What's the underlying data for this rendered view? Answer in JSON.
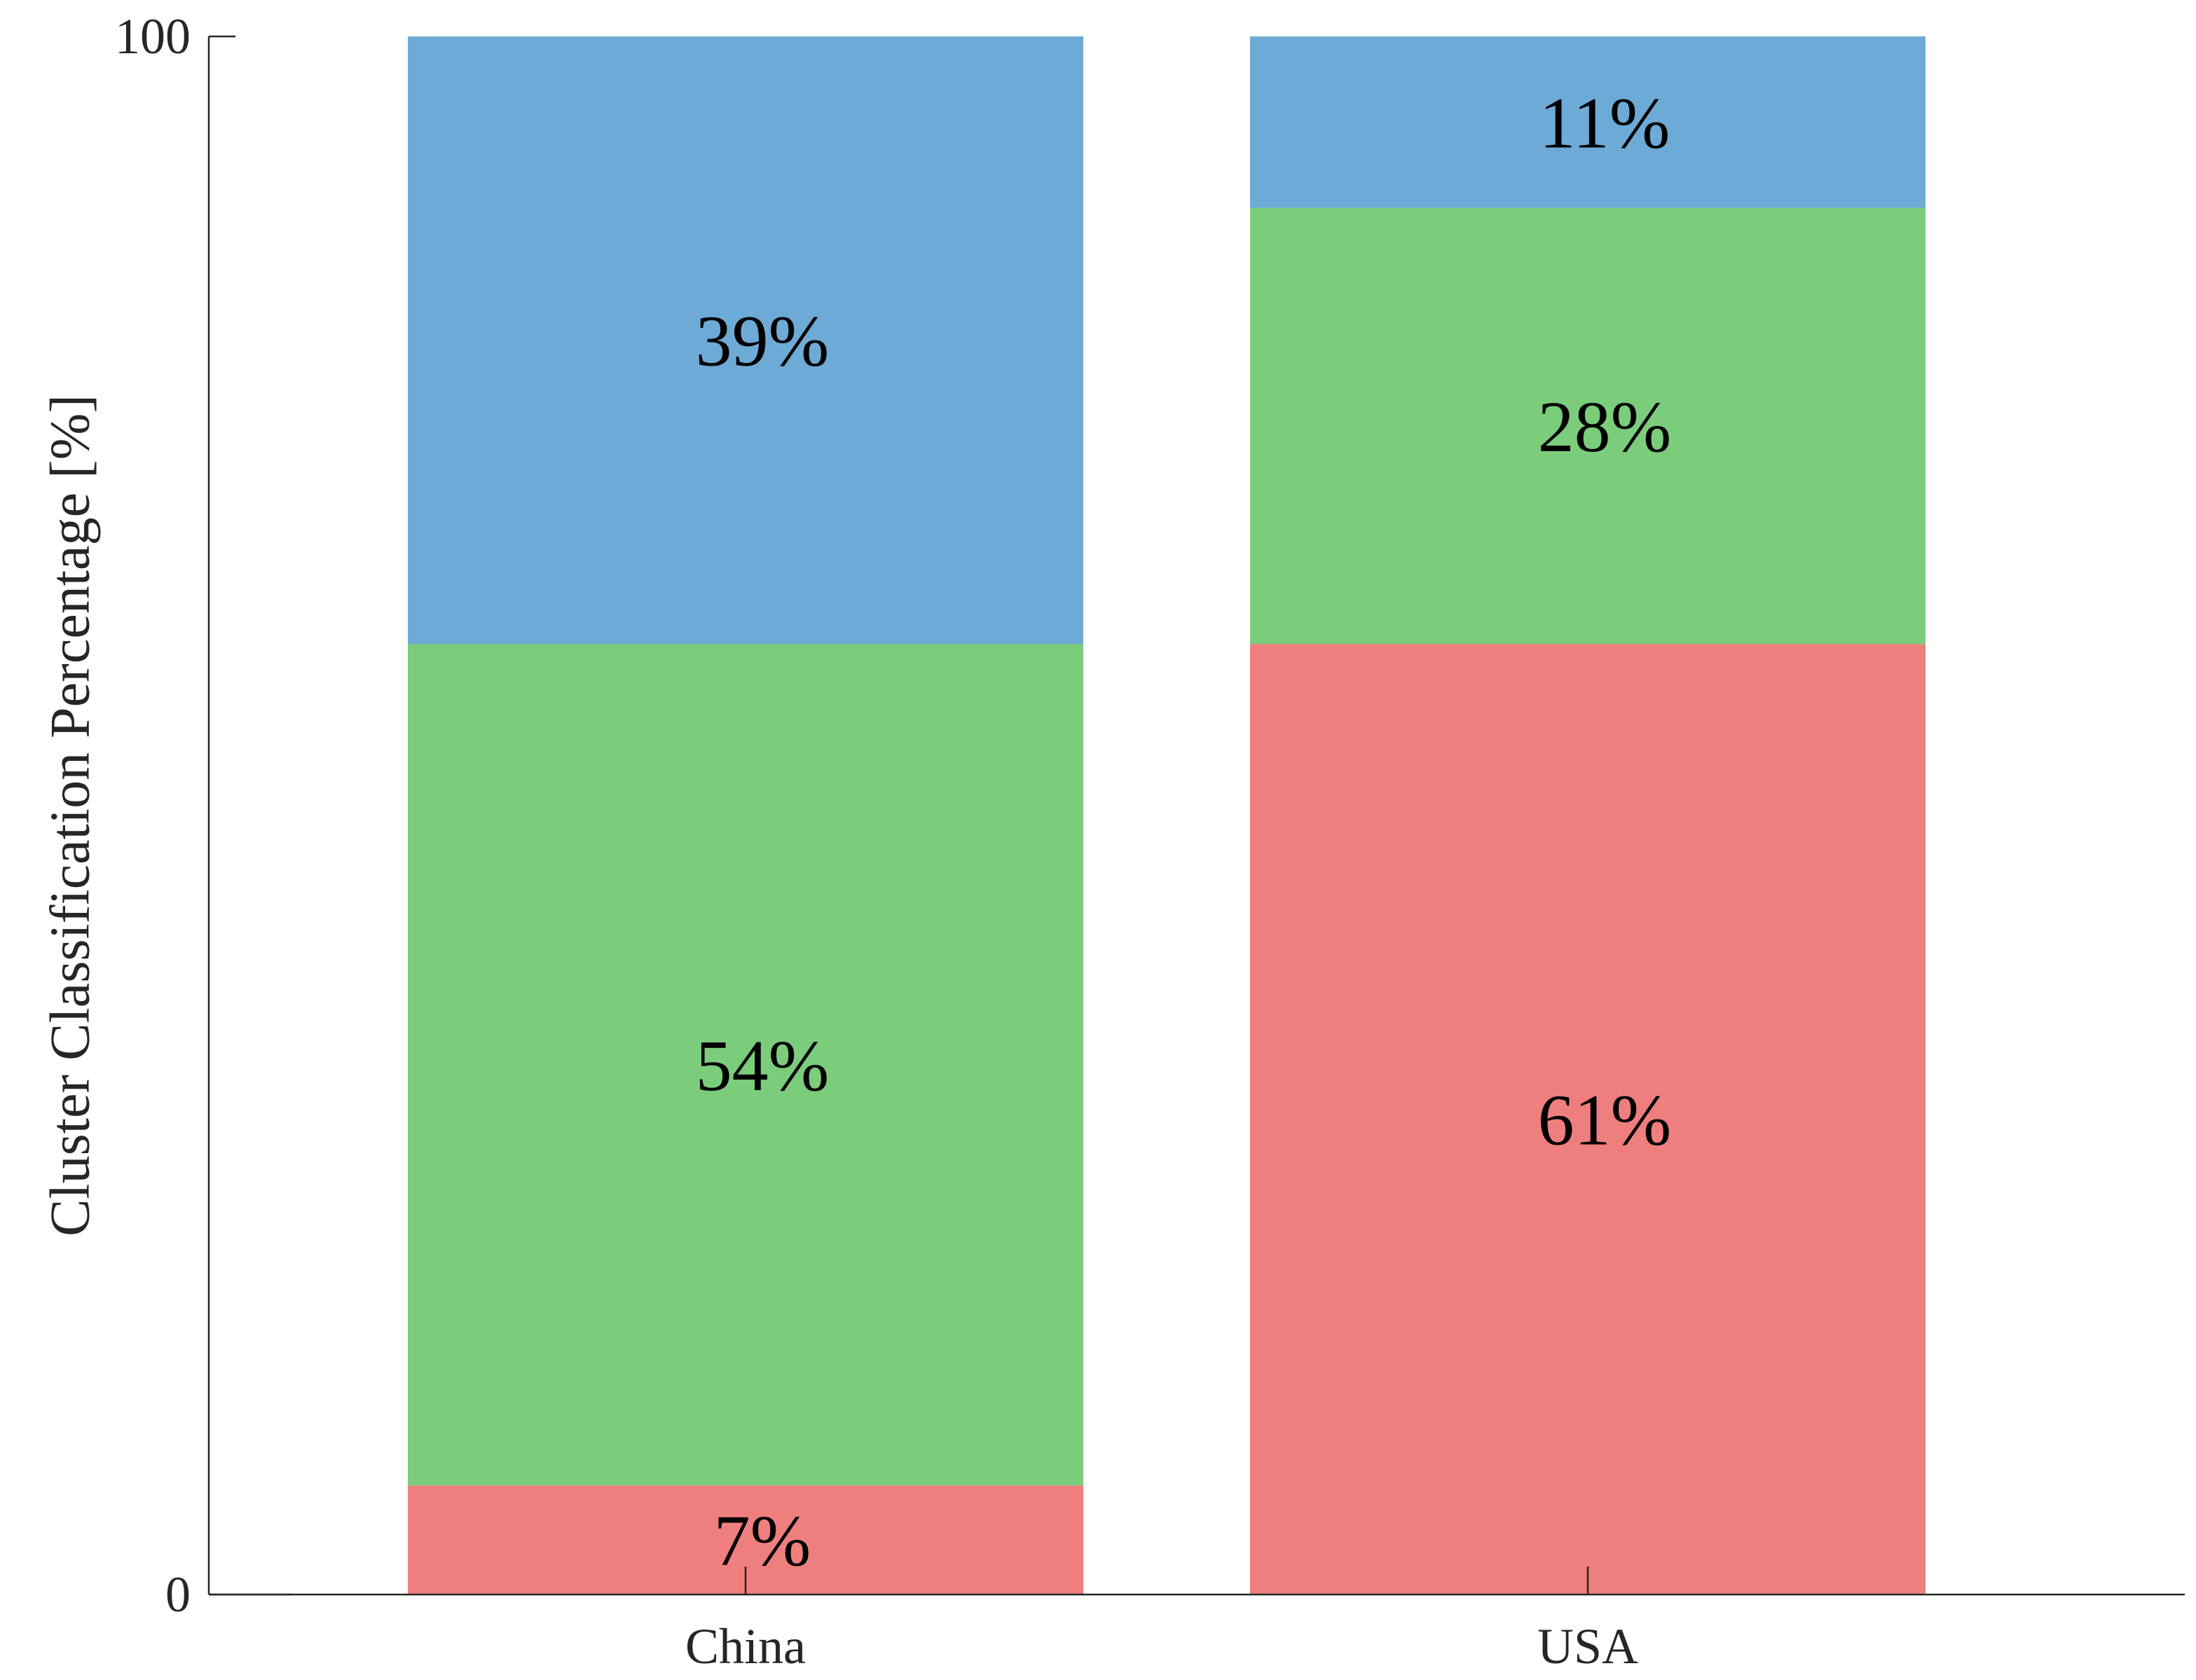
{
  "chart_data": {
    "type": "bar",
    "stacked": true,
    "categories": [
      "China",
      "USA"
    ],
    "series": [
      {
        "values": [
          7,
          61
        ],
        "labels": [
          "7%",
          "61%"
        ],
        "color": "#ef7f7e"
      },
      {
        "values": [
          54,
          28
        ],
        "labels": [
          "54%",
          "28%"
        ],
        "color": "#7bcd7b"
      },
      {
        "values": [
          39,
          11
        ],
        "labels": [
          "39%",
          "11%"
        ],
        "color": "#6eaad6"
      }
    ],
    "ylabel": "Cluster Classification Percentage [%]",
    "ylim": [
      0,
      100
    ],
    "yticks": [
      0,
      100
    ],
    "ytick_labels": [
      "0",
      "100"
    ],
    "grid": false,
    "legend": false
  }
}
